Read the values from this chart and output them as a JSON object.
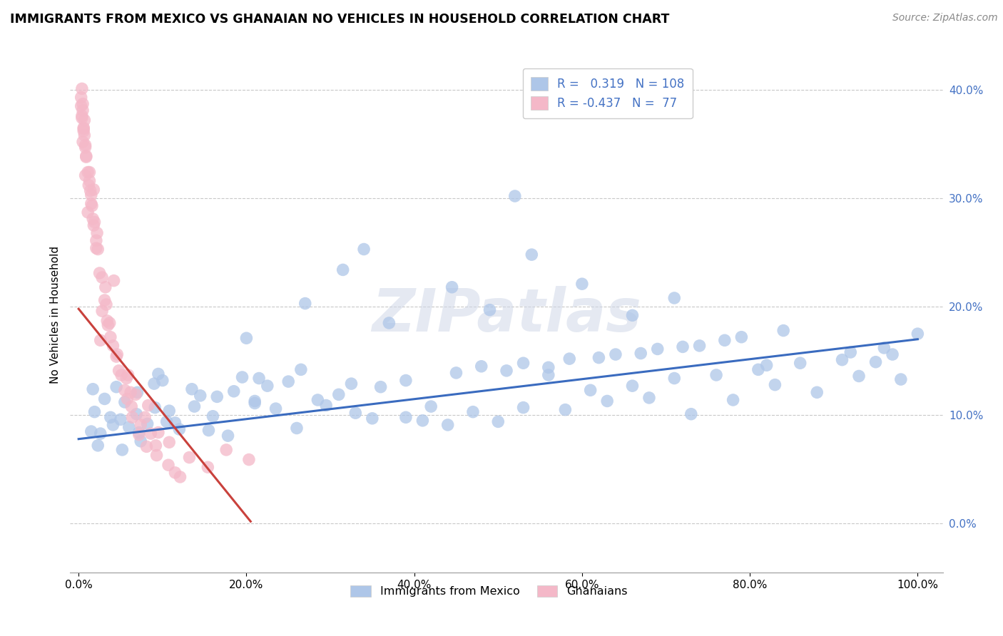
{
  "title": "IMMIGRANTS FROM MEXICO VS GHANAIAN NO VEHICLES IN HOUSEHOLD CORRELATION CHART",
  "source": "Source: ZipAtlas.com",
  "ylabel": "No Vehicles in Household",
  "xlabel": "",
  "watermark": "ZIPatlas",
  "xlim": [
    -1.0,
    103.0
  ],
  "ylim": [
    -4.5,
    43.0
  ],
  "yticks": [
    0,
    10,
    20,
    30,
    40
  ],
  "ytick_labels": [
    "0.0%",
    "10.0%",
    "20.0%",
    "30.0%",
    "40.0%"
  ],
  "xticks": [
    0,
    20,
    40,
    60,
    80,
    100
  ],
  "xtick_labels": [
    "0.0%",
    "20.0%",
    "40.0%",
    "60.0%",
    "80.0%",
    "100.0%"
  ],
  "blue_R": 0.319,
  "blue_N": 108,
  "pink_R": -0.437,
  "pink_N": 77,
  "blue_color": "#aec6e8",
  "pink_color": "#f4b8c8",
  "blue_edge_color": "#aec6e8",
  "pink_edge_color": "#f4b8c8",
  "blue_line_color": "#3a6bbf",
  "pink_line_color": "#c9413c",
  "blue_scatter_x": [
    1.5,
    2.3,
    4.1,
    1.9,
    5.2,
    3.1,
    6.0,
    7.4,
    1.7,
    3.8,
    9.1,
    2.6,
    5.5,
    10.5,
    6.9,
    12.0,
    4.5,
    8.2,
    14.5,
    10.8,
    17.8,
    9.0,
    5.0,
    13.8,
    21.0,
    7.2,
    10.0,
    16.0,
    23.5,
    7.0,
    26.0,
    16.5,
    11.5,
    19.5,
    29.5,
    13.5,
    35.0,
    21.0,
    9.5,
    33.0,
    41.0,
    22.5,
    15.5,
    28.5,
    47.0,
    25.0,
    39.0,
    18.5,
    53.0,
    31.0,
    44.0,
    21.5,
    58.0,
    36.0,
    50.0,
    26.5,
    63.0,
    42.0,
    56.0,
    32.5,
    68.0,
    48.0,
    61.0,
    39.0,
    73.0,
    53.0,
    66.0,
    45.0,
    78.0,
    58.5,
    71.0,
    51.0,
    83.0,
    64.0,
    76.0,
    56.0,
    88.0,
    69.0,
    81.0,
    62.0,
    93.0,
    74.0,
    86.0,
    67.0,
    98.0,
    79.0,
    91.0,
    72.0,
    95.0,
    84.0,
    97.0,
    77.0,
    37.0,
    54.0,
    27.0,
    49.0,
    60.0,
    31.5,
    44.5,
    66.0,
    71.0,
    20.0,
    34.0,
    82.0,
    92.0,
    96.0,
    100.0,
    52.0
  ],
  "blue_scatter_y": [
    8.5,
    7.2,
    9.1,
    10.3,
    6.8,
    11.5,
    8.9,
    7.6,
    12.4,
    9.8,
    10.7,
    8.3,
    11.2,
    9.4,
    10.1,
    8.7,
    12.6,
    9.2,
    11.8,
    10.4,
    8.1,
    12.9,
    9.6,
    10.8,
    11.3,
    8.4,
    13.2,
    9.9,
    10.6,
    12.1,
    8.8,
    11.7,
    9.3,
    13.5,
    10.9,
    12.4,
    9.7,
    11.1,
    13.8,
    10.2,
    9.5,
    12.7,
    8.6,
    11.4,
    10.3,
    13.1,
    9.8,
    12.2,
    10.7,
    11.9,
    9.1,
    13.4,
    10.5,
    12.6,
    9.4,
    14.2,
    11.3,
    10.8,
    13.7,
    12.9,
    11.6,
    14.5,
    12.3,
    13.2,
    10.1,
    14.8,
    12.7,
    13.9,
    11.4,
    15.2,
    13.4,
    14.1,
    12.8,
    15.6,
    13.7,
    14.4,
    12.1,
    16.1,
    14.2,
    15.3,
    13.6,
    16.4,
    14.8,
    15.7,
    13.3,
    17.2,
    15.1,
    16.3,
    14.9,
    17.8,
    15.6,
    16.9,
    18.5,
    24.8,
    20.3,
    19.7,
    22.1,
    23.4,
    21.8,
    19.2,
    20.8,
    17.1,
    25.3,
    14.6,
    15.8,
    16.2,
    17.5,
    30.2
  ],
  "pink_scatter_x": [
    0.3,
    0.5,
    0.8,
    1.1,
    0.4,
    0.6,
    1.5,
    0.9,
    1.8,
    0.7,
    2.1,
    1.3,
    2.5,
    0.8,
    3.2,
    1.6,
    0.5,
    2.8,
    1.1,
    3.8,
    0.6,
    2.2,
    4.5,
    1.4,
    0.3,
    3.5,
    0.9,
    5.1,
    1.7,
    0.4,
    4.2,
    2.6,
    0.7,
    5.8,
    1.2,
    3.1,
    0.5,
    6.4,
    2.3,
    0.8,
    4.8,
    1.9,
    7.2,
    3.7,
    1.3,
    5.5,
    8.1,
    2.8,
    0.6,
    6.3,
    4.1,
    9.3,
    1.5,
    7.4,
    0.4,
    5.9,
    10.7,
    3.3,
    8.6,
    2.1,
    6.8,
    11.5,
    4.6,
    9.2,
    1.8,
    13.2,
    5.7,
    7.9,
    15.4,
    3.4,
    10.8,
    12.1,
    8.3,
    17.6,
    6.2,
    20.3,
    9.5
  ],
  "pink_scatter_y": [
    38.5,
    35.2,
    32.1,
    28.7,
    40.1,
    36.4,
    30.3,
    33.8,
    27.5,
    37.2,
    25.4,
    31.6,
    23.1,
    34.9,
    21.8,
    29.3,
    38.7,
    19.6,
    32.4,
    17.2,
    36.5,
    26.8,
    15.4,
    30.7,
    39.3,
    18.3,
    33.9,
    13.7,
    28.1,
    37.6,
    22.4,
    16.9,
    35.8,
    11.5,
    31.2,
    20.6,
    38.1,
    9.8,
    25.3,
    34.7,
    14.1,
    27.8,
    8.2,
    18.5,
    32.4,
    12.3,
    7.1,
    22.7,
    36.2,
    10.8,
    16.4,
    6.3,
    29.5,
    9.1,
    37.4,
    13.7,
    5.4,
    20.2,
    8.3,
    26.1,
    11.9,
    4.7,
    15.6,
    7.2,
    30.8,
    6.1,
    13.4,
    9.8,
    5.2,
    18.7,
    7.5,
    4.3,
    10.9,
    6.8,
    12.1,
    5.9,
    8.4
  ],
  "blue_trend_x0": 0,
  "blue_trend_x1": 100,
  "blue_trend_y0": 7.8,
  "blue_trend_y1": 17.0,
  "pink_trend_x0": 0,
  "pink_trend_x1": 20.5,
  "pink_trend_y0": 19.8,
  "pink_trend_y1": 0.2
}
